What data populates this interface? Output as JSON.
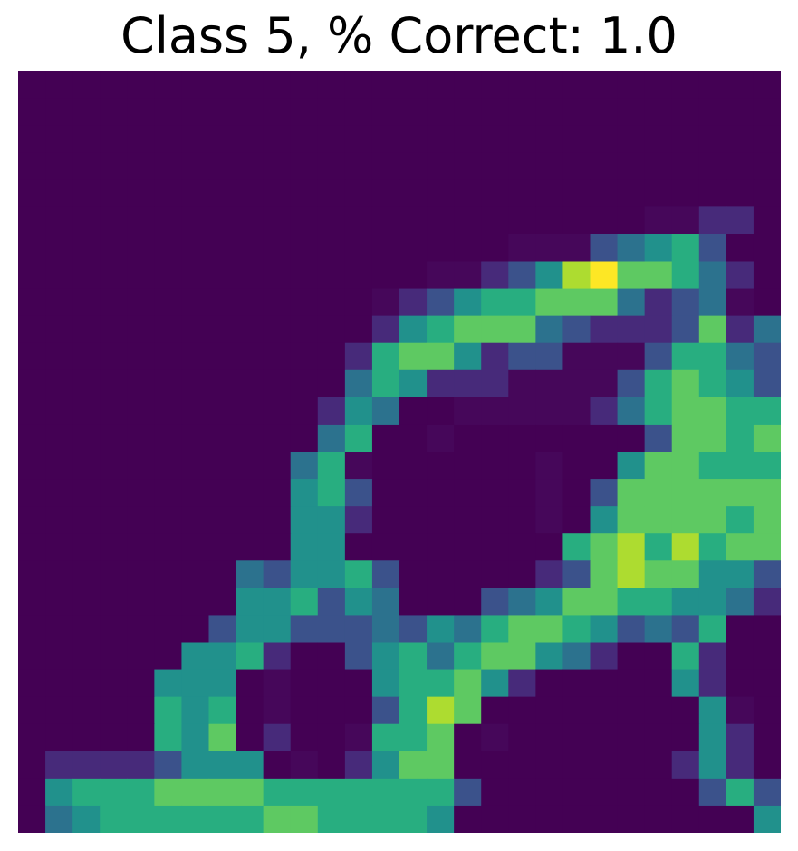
{
  "chart_data": {
    "type": "heatmap",
    "title": "Class 5, % Correct: 1.0",
    "colormap": "viridis",
    "value_range": [
      0,
      1
    ],
    "axes_visible": false,
    "rows": 28,
    "cols": 28,
    "values": [
      "                            ",
      "                            ",
      "                            ",
      "                            ",
      "                            ",
      "                       1122 ",
      "                  11134563  ",
      "               112358977642 ",
      "             12356677742341 ",
      "             256777432223724",
      "            2677523311136643",
      "            4652221111367653",
      "           254  1111124677662",
      "           46  1       377672",
      "          461      1  5776661",
      "          563      1 37777773",
      "          552      1 57777673",
      "          55        678686772",
      "        435563     237877553",
      "        556354   34577665542",
      "       3553334354677653436 ",
      "      5562  3564677542  62 ",
      "     555 1   566752     52 ",
      "     656 1   3687        51 ",
      "     657 2  1667 1       52 ",
      " 22223555 1 2577        252 ",
      " 5666777766666663        363 ",
      " 456666667766665           53 ",
      "     112222233              ",
      "                            "
    ]
  }
}
